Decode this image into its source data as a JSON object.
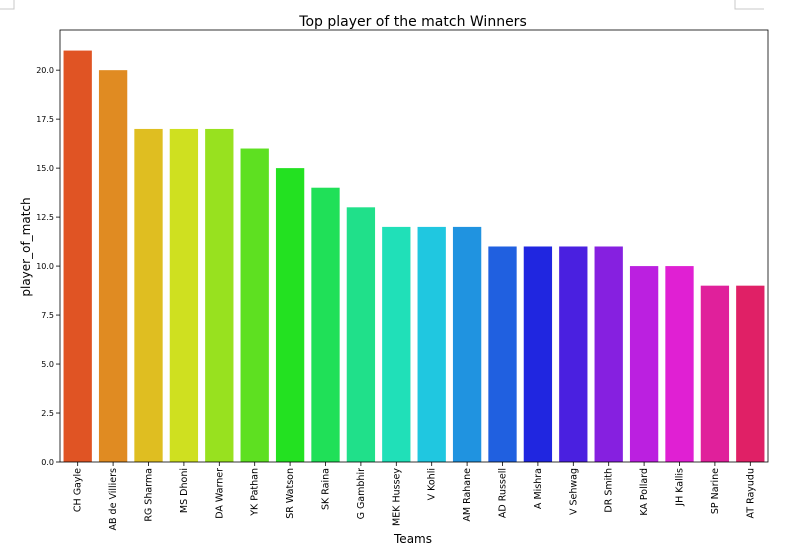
{
  "chart_data": {
    "type": "bar",
    "title": "Top player of the match Winners",
    "xlabel": "Teams",
    "ylabel": "player_of_match",
    "categories": [
      "CH Gayle",
      "AB de Villiers",
      "RG Sharma",
      "MS Dhoni",
      "DA Warner",
      "YK Pathan",
      "SR Watson",
      "SK Raina",
      "G Gambhir",
      "MEK Hussey",
      "V Kohli",
      "AM Rahane",
      "AD Russell",
      "A Mishra",
      "V Sehwag",
      "DR Smith",
      "KA Pollard",
      "JH Kallis",
      "SP Narine",
      "AT Rayudu"
    ],
    "values": [
      21,
      20,
      17,
      17,
      17,
      16,
      15,
      14,
      13,
      12,
      12,
      12,
      11,
      11,
      11,
      11,
      10,
      10,
      9,
      9
    ],
    "colors": [
      "#e05424",
      "#e08b22",
      "#dfbe21",
      "#cfe020",
      "#98e11f",
      "#5ee021",
      "#23e121",
      "#20e058",
      "#20e08a",
      "#20e0b8",
      "#20c7e0",
      "#2093e0",
      "#2060e0",
      "#2026e0",
      "#4a20e0",
      "#8620e0",
      "#bb20e0",
      "#e020d3",
      "#e0209b",
      "#e02066"
    ],
    "ylim": [
      0,
      22.05
    ],
    "yticks": [
      "0.0",
      "2.5",
      "5.0",
      "7.5",
      "10.0",
      "12.5",
      "15.0",
      "17.5",
      "20.0"
    ],
    "grid": false,
    "legend": "none"
  }
}
